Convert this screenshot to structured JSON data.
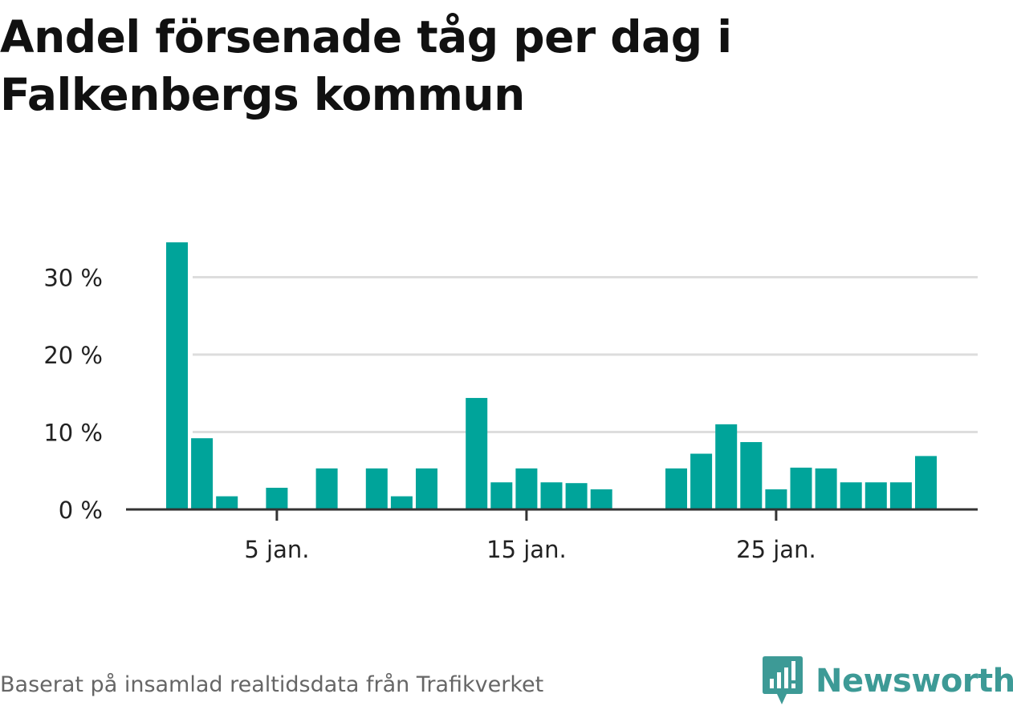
{
  "page": {
    "title": "Andel försenade tåg per dag i Falkenbergs kommun",
    "footer": "Baserat på insamlad realtidsdata från Trafikverket",
    "brand": "Newsworthy"
  },
  "colors": {
    "bar": "#00a49a",
    "gridline": "#dddddd",
    "axis": "#333333",
    "brand": "#3d9a96"
  },
  "chart_data": {
    "type": "bar",
    "title": "Andel försenade tåg per dag i Falkenbergs kommun",
    "xlabel": "",
    "ylabel": "",
    "x": [
      "1 jan.",
      "2 jan.",
      "3 jan.",
      "4 jan.",
      "5 jan.",
      "6 jan.",
      "7 jan.",
      "8 jan.",
      "9 jan.",
      "10 jan.",
      "11 jan.",
      "12 jan.",
      "13 jan.",
      "14 jan.",
      "15 jan.",
      "16 jan.",
      "17 jan.",
      "18 jan.",
      "19 jan.",
      "20 jan.",
      "21 jan.",
      "22 jan.",
      "23 jan.",
      "24 jan.",
      "25 jan.",
      "26 jan.",
      "27 jan.",
      "28 jan.",
      "29 jan.",
      "30 jan.",
      "31 jan."
    ],
    "values": [
      34.5,
      9.2,
      1.7,
      0,
      2.8,
      0,
      5.3,
      0,
      5.3,
      1.7,
      5.3,
      0,
      14.4,
      3.5,
      5.3,
      3.5,
      3.4,
      2.6,
      0,
      0,
      5.3,
      7.2,
      11.0,
      8.7,
      2.6,
      5.4,
      5.3,
      3.5,
      3.5,
      3.5,
      6.9
    ],
    "ylim": [
      0,
      35
    ],
    "yticks": [
      0,
      10,
      20,
      30
    ],
    "ytick_labels": [
      "0 %",
      "10 %",
      "20 %",
      "30 %"
    ],
    "xticks": [
      5,
      15,
      25
    ],
    "xtick_labels": [
      "5 jan.",
      "15 jan.",
      "25 jan."
    ],
    "grid": true,
    "legend": "none"
  }
}
